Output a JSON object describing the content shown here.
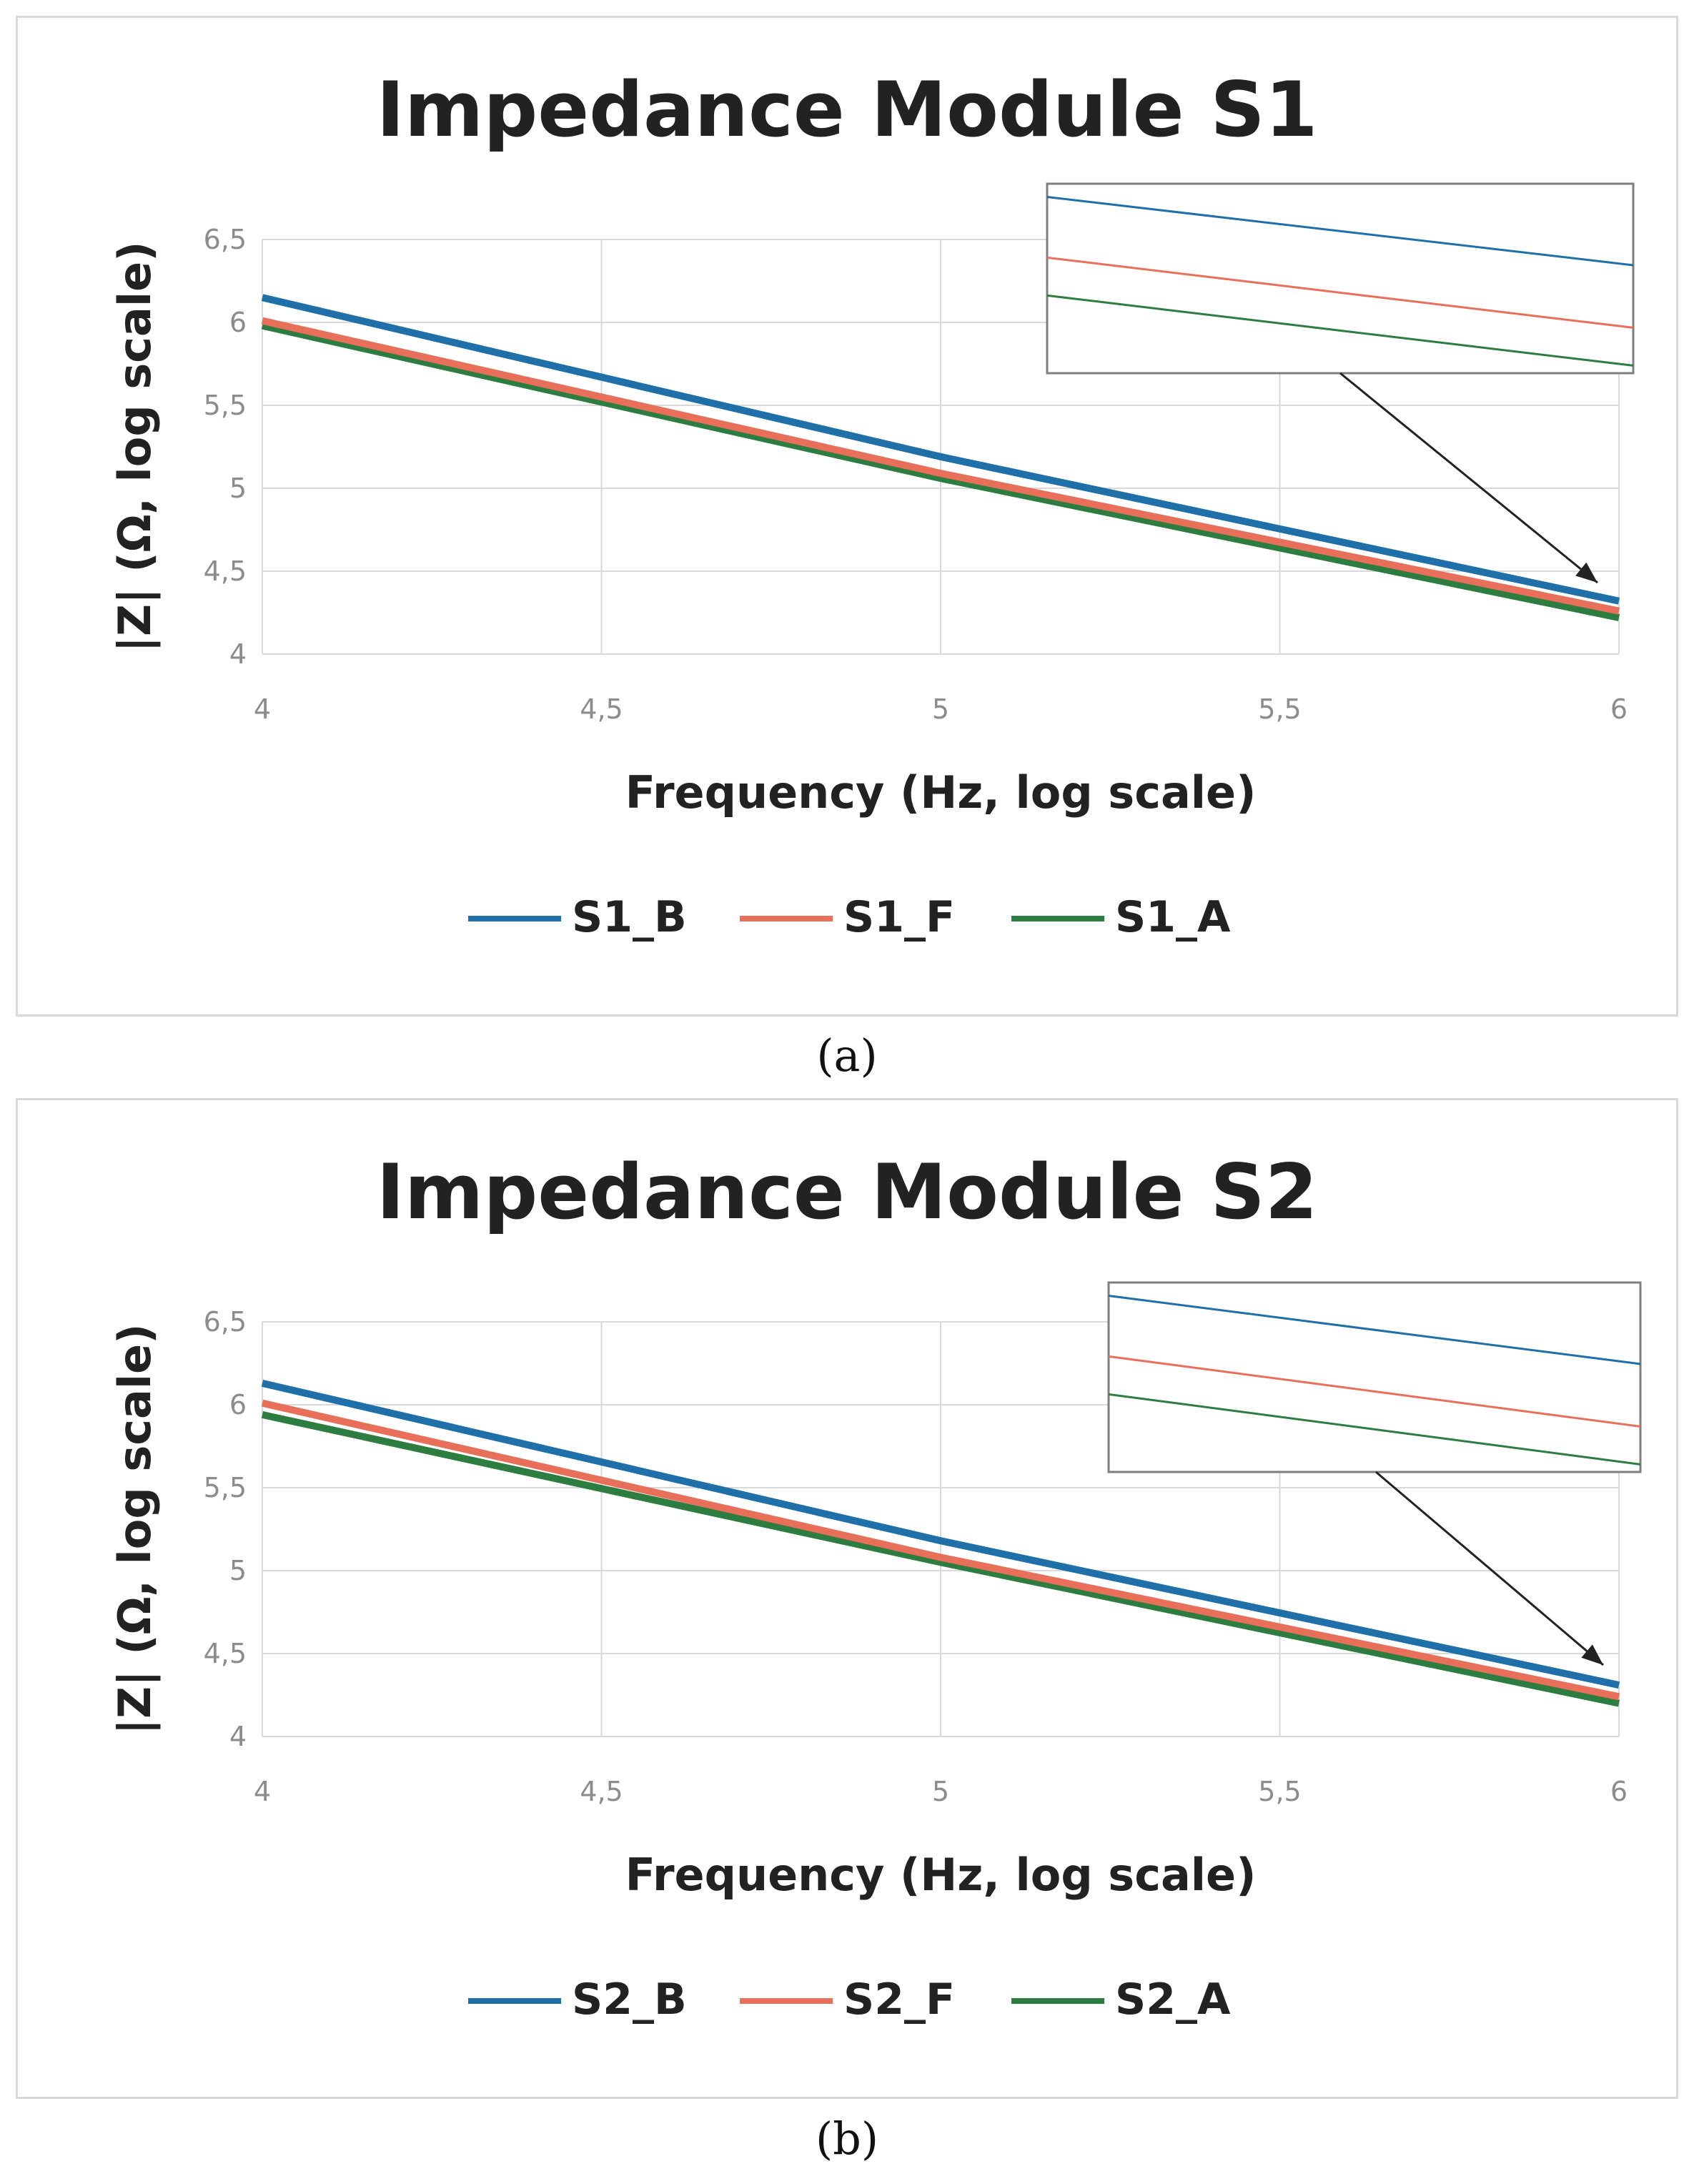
{
  "chart_data": [
    {
      "type": "line",
      "title": "Impedance Module S1",
      "xlabel": "Frequency (Hz, log scale)",
      "ylabel": "|Z| (Ω, log scale)",
      "xlim": [
        4,
        6
      ],
      "ylim": [
        4,
        6.5
      ],
      "x_ticks": [
        4,
        4.5,
        5,
        5.5,
        6
      ],
      "x_tick_labels": [
        "4",
        "4,5",
        "5",
        "5,5",
        "6"
      ],
      "y_ticks": [
        4,
        4.5,
        5,
        5.5,
        6,
        6.5
      ],
      "y_tick_labels": [
        "4",
        "4,5",
        "5",
        "5,5",
        "6",
        "6,5"
      ],
      "grid": true,
      "legend_position": "bottom",
      "caption": "(a)",
      "series": [
        {
          "name": "S1_B",
          "color": "#1f6fa8",
          "x": [
            4,
            5,
            6
          ],
          "y": [
            6.15,
            5.19,
            4.32
          ]
        },
        {
          "name": "S1_F",
          "color": "#e8705a",
          "x": [
            4,
            5,
            6
          ],
          "y": [
            6.01,
            5.09,
            4.26
          ]
        },
        {
          "name": "S1_A",
          "color": "#2e7d40",
          "x": [
            4,
            5,
            6
          ],
          "y": [
            5.98,
            5.06,
            4.22
          ]
        }
      ]
    },
    {
      "type": "line",
      "title": "Impedance Module S2",
      "xlabel": "Frequency (Hz, log scale)",
      "ylabel": "|Z| (Ω, log scale)",
      "xlim": [
        4,
        6
      ],
      "ylim": [
        4,
        6.5
      ],
      "x_ticks": [
        4,
        4.5,
        5,
        5.5,
        6
      ],
      "x_tick_labels": [
        "4",
        "4,5",
        "5",
        "5,5",
        "6"
      ],
      "y_ticks": [
        4,
        4.5,
        5,
        5.5,
        6,
        6.5
      ],
      "y_tick_labels": [
        "4",
        "4,5",
        "5",
        "5,5",
        "6",
        "6,5"
      ],
      "grid": true,
      "legend_position": "bottom",
      "caption": "(b)",
      "series": [
        {
          "name": "S2_B",
          "color": "#1f6fa8",
          "x": [
            4,
            5,
            6
          ],
          "y": [
            6.13,
            5.18,
            4.31
          ]
        },
        {
          "name": "S2_F",
          "color": "#e8705a",
          "x": [
            4,
            5,
            6
          ],
          "y": [
            6.01,
            5.08,
            4.24
          ]
        },
        {
          "name": "S2_A",
          "color": "#2e7d40",
          "x": [
            4,
            5,
            6
          ],
          "y": [
            5.94,
            5.05,
            4.2
          ]
        }
      ]
    }
  ]
}
